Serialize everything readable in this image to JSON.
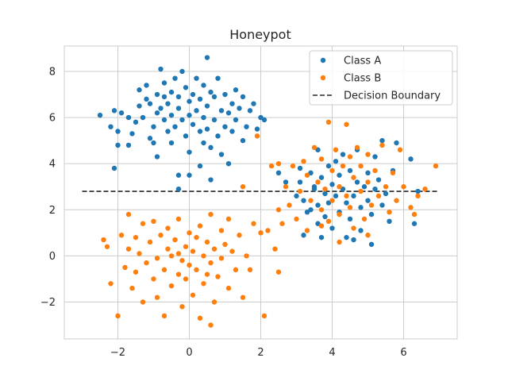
{
  "chart_data": {
    "type": "scatter",
    "title": "Honeypot",
    "xlabel": "",
    "ylabel": "",
    "xlim": [
      -3.5,
      7.5
    ],
    "ylim": [
      -3.6,
      9.1
    ],
    "xticks": [
      -2,
      0,
      2,
      4,
      6
    ],
    "yticks": [
      -2,
      0,
      2,
      4,
      6,
      8
    ],
    "xtick_labels": [
      "−2",
      "0",
      "2",
      "4",
      "6"
    ],
    "ytick_labels": [
      "−2",
      "0",
      "2",
      "4",
      "6",
      "8"
    ],
    "grid": true,
    "legend_position": "top-right",
    "series": [
      {
        "name": "Class A",
        "color": "#1f77b4",
        "points": [
          [
            -2.5,
            6.1
          ],
          [
            -2.2,
            5.6
          ],
          [
            -2.1,
            6.3
          ],
          [
            -2.0,
            5.4
          ],
          [
            -1.9,
            6.2
          ],
          [
            -2.0,
            4.8
          ],
          [
            -1.7,
            4.8
          ],
          [
            -1.7,
            6.0
          ],
          [
            -1.6,
            5.3
          ],
          [
            -1.5,
            5.8
          ],
          [
            -1.4,
            6.5
          ],
          [
            -1.4,
            7.2
          ],
          [
            -1.3,
            6.0
          ],
          [
            -1.2,
            6.8
          ],
          [
            -1.2,
            7.4
          ],
          [
            -1.1,
            6.6
          ],
          [
            -1.1,
            5.1
          ],
          [
            -1.0,
            4.9
          ],
          [
            -1.0,
            5.6
          ],
          [
            -0.9,
            6.2
          ],
          [
            -0.9,
            7.0
          ],
          [
            -0.8,
            6.4
          ],
          [
            -0.8,
            8.1
          ],
          [
            -0.7,
            5.9
          ],
          [
            -0.7,
            6.9
          ],
          [
            -0.7,
            7.5
          ],
          [
            -0.6,
            5.4
          ],
          [
            -0.6,
            6.6
          ],
          [
            -0.5,
            4.9
          ],
          [
            -0.5,
            6.1
          ],
          [
            -0.5,
            7.1
          ],
          [
            -0.4,
            7.7
          ],
          [
            -0.4,
            5.6
          ],
          [
            -0.3,
            6.4
          ],
          [
            -0.3,
            6.9
          ],
          [
            -0.2,
            5.9
          ],
          [
            -0.2,
            8.0
          ],
          [
            -0.1,
            5.2
          ],
          [
            -0.1,
            7.3
          ],
          [
            0.0,
            6.1
          ],
          [
            0.0,
            6.7
          ],
          [
            0.0,
            4.5
          ],
          [
            0.1,
            5.7
          ],
          [
            0.1,
            7.0
          ],
          [
            0.2,
            6.3
          ],
          [
            0.2,
            7.7
          ],
          [
            0.3,
            5.4
          ],
          [
            0.3,
            6.8
          ],
          [
            0.4,
            4.9
          ],
          [
            0.4,
            6.0
          ],
          [
            0.4,
            7.4
          ],
          [
            0.5,
            5.5
          ],
          [
            0.5,
            6.5
          ],
          [
            0.5,
            8.6
          ],
          [
            0.6,
            4.7
          ],
          [
            0.6,
            7.1
          ],
          [
            0.7,
            5.9
          ],
          [
            0.7,
            6.9
          ],
          [
            0.8,
            5.2
          ],
          [
            0.8,
            7.7
          ],
          [
            0.9,
            6.3
          ],
          [
            0.9,
            4.4
          ],
          [
            1.0,
            5.6
          ],
          [
            1.0,
            7.0
          ],
          [
            1.1,
            6.2
          ],
          [
            1.1,
            4.0
          ],
          [
            1.2,
            5.4
          ],
          [
            1.2,
            6.6
          ],
          [
            1.3,
            5.9
          ],
          [
            1.3,
            7.2
          ],
          [
            1.4,
            6.4
          ],
          [
            1.5,
            5.0
          ],
          [
            1.5,
            6.9
          ],
          [
            1.6,
            5.6
          ],
          [
            1.7,
            6.3
          ],
          [
            1.8,
            6.6
          ],
          [
            1.9,
            5.5
          ],
          [
            2.0,
            6.0
          ],
          [
            2.1,
            5.9
          ],
          [
            -2.1,
            3.8
          ],
          [
            -0.9,
            4.3
          ],
          [
            -0.3,
            3.5
          ],
          [
            0.0,
            3.5
          ],
          [
            0.3,
            3.9
          ],
          [
            0.6,
            3.3
          ],
          [
            -0.3,
            2.9
          ],
          [
            3.0,
            2.6
          ],
          [
            3.1,
            3.2
          ],
          [
            3.2,
            2.4
          ],
          [
            3.3,
            1.9
          ],
          [
            3.4,
            3.6
          ],
          [
            3.4,
            2.0
          ],
          [
            3.5,
            2.9
          ],
          [
            3.6,
            2.2
          ],
          [
            3.6,
            1.4
          ],
          [
            3.7,
            3.4
          ],
          [
            3.8,
            2.7
          ],
          [
            3.8,
            1.7
          ],
          [
            3.9,
            3.9
          ],
          [
            3.9,
            2.3
          ],
          [
            4.0,
            3.1
          ],
          [
            4.0,
            1.2
          ],
          [
            4.1,
            2.6
          ],
          [
            4.2,
            3.5
          ],
          [
            4.2,
            1.9
          ],
          [
            4.3,
            4.4
          ],
          [
            4.3,
            2.9
          ],
          [
            4.4,
            2.3
          ],
          [
            4.4,
            0.8
          ],
          [
            4.5,
            3.7
          ],
          [
            4.5,
            1.6
          ],
          [
            4.6,
            2.6
          ],
          [
            4.7,
            3.2
          ],
          [
            4.7,
            4.6
          ],
          [
            4.8,
            2.1
          ],
          [
            4.8,
            1.1
          ],
          [
            4.9,
            3.0
          ],
          [
            5.0,
            2.4
          ],
          [
            5.0,
            3.6
          ],
          [
            5.1,
            1.8
          ],
          [
            5.2,
            2.9
          ],
          [
            5.2,
            4.3
          ],
          [
            5.3,
            3.3
          ],
          [
            5.4,
            2.2
          ],
          [
            5.5,
            2.7
          ],
          [
            5.6,
            1.5
          ],
          [
            5.7,
            3.7
          ],
          [
            3.2,
            0.9
          ],
          [
            3.5,
            3.0
          ],
          [
            4.1,
            4.1
          ],
          [
            4.6,
            0.7
          ],
          [
            5.1,
            0.5
          ],
          [
            5.4,
            5.0
          ],
          [
            5.8,
            4.9
          ],
          [
            6.2,
            4.2
          ],
          [
            6.4,
            2.8
          ],
          [
            6.3,
            1.4
          ],
          [
            3.7,
            0.8
          ],
          [
            3.6,
            4.6
          ],
          [
            2.5,
            3.6
          ],
          [
            2.7,
            3.2
          ],
          [
            3.1,
            3.8
          ]
        ]
      },
      {
        "name": "Class B",
        "color": "#ff7f0e",
        "points": [
          [
            -2.4,
            0.7
          ],
          [
            -2.3,
            0.4
          ],
          [
            -2.2,
            -1.2
          ],
          [
            -2.0,
            -2.6
          ],
          [
            -1.9,
            0.9
          ],
          [
            -1.8,
            -0.5
          ],
          [
            -1.7,
            0.3
          ],
          [
            -1.7,
            1.8
          ],
          [
            -1.6,
            -1.4
          ],
          [
            -1.5,
            0.8
          ],
          [
            -1.5,
            -0.7
          ],
          [
            -1.4,
            0.1
          ],
          [
            -1.3,
            -2.0
          ],
          [
            -1.3,
            1.4
          ],
          [
            -1.2,
            -0.3
          ],
          [
            -1.1,
            0.6
          ],
          [
            -1.0,
            -1.0
          ],
          [
            -1.0,
            1.5
          ],
          [
            -0.9,
            -0.1
          ],
          [
            -0.9,
            -1.8
          ],
          [
            -0.8,
            0.9
          ],
          [
            -0.7,
            -0.6
          ],
          [
            -0.7,
            -2.6
          ],
          [
            -0.6,
            0.3
          ],
          [
            -0.6,
            1.2
          ],
          [
            -0.5,
            -1.3
          ],
          [
            -0.5,
            0.0
          ],
          [
            -0.4,
            0.7
          ],
          [
            -0.3,
            -0.8
          ],
          [
            -0.3,
            1.6
          ],
          [
            -0.2,
            -0.2
          ],
          [
            -0.2,
            -2.2
          ],
          [
            -0.1,
            0.4
          ],
          [
            -0.1,
            -1.0
          ],
          [
            0.0,
            1.0
          ],
          [
            0.0,
            -0.4
          ],
          [
            0.1,
            0.2
          ],
          [
            0.1,
            -1.7
          ],
          [
            0.2,
            0.8
          ],
          [
            0.2,
            -0.6
          ],
          [
            0.3,
            -2.7
          ],
          [
            0.3,
            1.3
          ],
          [
            0.4,
            0.0
          ],
          [
            0.4,
            -1.2
          ],
          [
            0.5,
            0.6
          ],
          [
            0.6,
            -0.3
          ],
          [
            0.6,
            1.8
          ],
          [
            0.7,
            -2.0
          ],
          [
            0.7,
            0.3
          ],
          [
            0.8,
            -0.9
          ],
          [
            0.9,
            1.1
          ],
          [
            0.9,
            -0.1
          ],
          [
            1.0,
            0.5
          ],
          [
            1.1,
            -1.4
          ],
          [
            1.1,
            1.6
          ],
          [
            1.2,
            0.2
          ],
          [
            1.3,
            -0.6
          ],
          [
            1.4,
            0.9
          ],
          [
            1.5,
            -1.8
          ],
          [
            1.6,
            0.0
          ],
          [
            1.7,
            -0.6
          ],
          [
            1.8,
            1.4
          ],
          [
            2.0,
            1.0
          ],
          [
            -0.3,
            0.1
          ],
          [
            0.5,
            -0.8
          ],
          [
            0.6,
            -3.0
          ],
          [
            1.5,
            3.0
          ],
          [
            2.1,
            -2.6
          ],
          [
            2.2,
            1.1
          ],
          [
            2.4,
            0.3
          ],
          [
            2.5,
            -0.7
          ],
          [
            2.6,
            1.4
          ],
          [
            1.9,
            5.2
          ],
          [
            2.3,
            3.9
          ],
          [
            2.5,
            2.0
          ],
          [
            2.7,
            3.0
          ],
          [
            2.8,
            2.2
          ],
          [
            2.9,
            3.9
          ],
          [
            3.0,
            1.6
          ],
          [
            3.1,
            2.8
          ],
          [
            3.2,
            4.1
          ],
          [
            3.3,
            1.1
          ],
          [
            3.3,
            3.5
          ],
          [
            3.4,
            2.4
          ],
          [
            3.5,
            4.7
          ],
          [
            3.6,
            3.2
          ],
          [
            3.7,
            2.0
          ],
          [
            3.7,
            4.2
          ],
          [
            3.8,
            2.9
          ],
          [
            3.9,
            5.8
          ],
          [
            3.9,
            1.5
          ],
          [
            4.0,
            3.7
          ],
          [
            4.0,
            2.4
          ],
          [
            4.1,
            4.6
          ],
          [
            4.2,
            3.0
          ],
          [
            4.2,
            1.8
          ],
          [
            4.3,
            3.9
          ],
          [
            4.4,
            2.6
          ],
          [
            4.4,
            5.7
          ],
          [
            4.5,
            4.3
          ],
          [
            4.5,
            2.1
          ],
          [
            4.6,
            3.4
          ],
          [
            4.6,
            1.2
          ],
          [
            4.7,
            4.7
          ],
          [
            4.8,
            2.8
          ],
          [
            4.8,
            3.9
          ],
          [
            4.9,
            1.6
          ],
          [
            5.0,
            3.2
          ],
          [
            5.0,
            4.4
          ],
          [
            5.1,
            2.2
          ],
          [
            5.2,
            3.7
          ],
          [
            5.3,
            2.6
          ],
          [
            5.4,
            4.8
          ],
          [
            5.5,
            3.0
          ],
          [
            5.6,
            1.9
          ],
          [
            5.7,
            3.6
          ],
          [
            5.8,
            2.4
          ],
          [
            5.9,
            4.6
          ],
          [
            6.0,
            3.0
          ],
          [
            6.2,
            2.1
          ],
          [
            6.4,
            2.6
          ],
          [
            6.6,
            2.9
          ],
          [
            6.9,
            3.9
          ],
          [
            6.3,
            1.8
          ],
          [
            5.0,
            0.9
          ],
          [
            4.2,
            0.6
          ],
          [
            3.7,
            1.3
          ],
          [
            2.5,
            4.0
          ]
        ]
      }
    ],
    "decision_boundary": {
      "label": "Decision Boundary",
      "style": "dashed",
      "color": "#262626",
      "x": [
        -3.0,
        7.0
      ],
      "y": [
        2.8,
        2.8
      ]
    }
  }
}
